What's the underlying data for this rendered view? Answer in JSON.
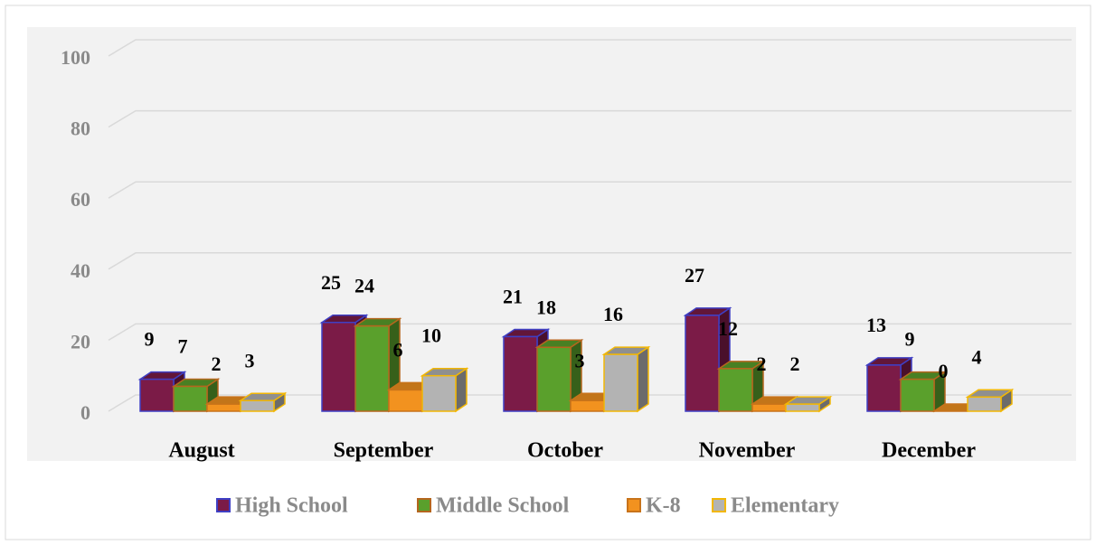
{
  "chart_data": {
    "type": "bar3d",
    "categories": [
      "August",
      "September",
      "October",
      "November",
      "December"
    ],
    "series": [
      {
        "name": "High School",
        "color": "#7b1b47",
        "edge_color": "#3f3fc4",
        "values": [
          9,
          25,
          21,
          27,
          13
        ]
      },
      {
        "name": "Middle School",
        "color": "#5aa02c",
        "edge_color": "#b5661e",
        "values": [
          7,
          24,
          18,
          12,
          9
        ]
      },
      {
        "name": "K-8",
        "color": "#f2921f",
        "edge_color": "#c8731a",
        "values": [
          2,
          6,
          3,
          2,
          0
        ]
      },
      {
        "name": "Elementary",
        "color": "#b3b3b3",
        "edge_color": "#f2b705",
        "values": [
          3,
          10,
          16,
          2,
          4
        ]
      }
    ],
    "ylim": [
      0,
      100
    ],
    "yticks": [
      0,
      20,
      40,
      60,
      80,
      100
    ],
    "grid": true,
    "legend": "bottom"
  }
}
